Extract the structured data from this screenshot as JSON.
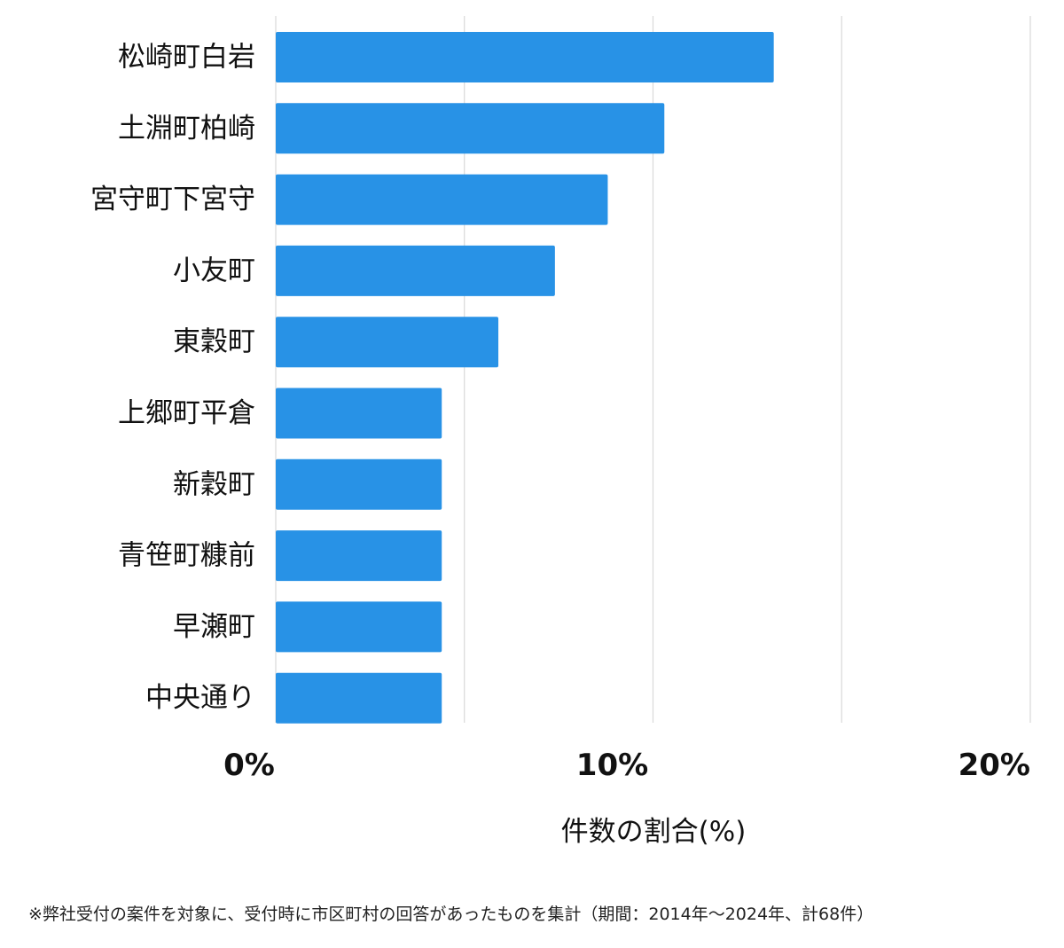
{
  "chart_data": {
    "type": "bar",
    "orientation": "horizontal",
    "categories": [
      "松崎町白岩",
      "土淵町柏崎",
      "宮守町下宮守",
      "小友町",
      "東穀町",
      "上郷町平倉",
      "新穀町",
      "青笹町糠前",
      "早瀬町",
      "中央通り"
    ],
    "values": [
      13.2,
      10.3,
      8.8,
      7.4,
      5.9,
      4.4,
      4.4,
      4.4,
      4.4,
      4.4
    ],
    "xlim": [
      0,
      20
    ],
    "x_tick_labels": [
      "0%",
      "10%",
      "20%"
    ],
    "x_tick_values": [
      0,
      10,
      20
    ],
    "gridline_values": [
      0,
      5,
      10,
      15,
      20
    ],
    "xlabel": "件数の割合(%)",
    "ylabel": "",
    "grid": true,
    "bar_color": "#2892e6",
    "grid_color": "#d9d9d9",
    "text_color": "#111111"
  },
  "footnote": "※弊社受付の案件を対象に、受付時に市区町村の回答があったものを集計（期間：2014年～2024年、計68件）"
}
